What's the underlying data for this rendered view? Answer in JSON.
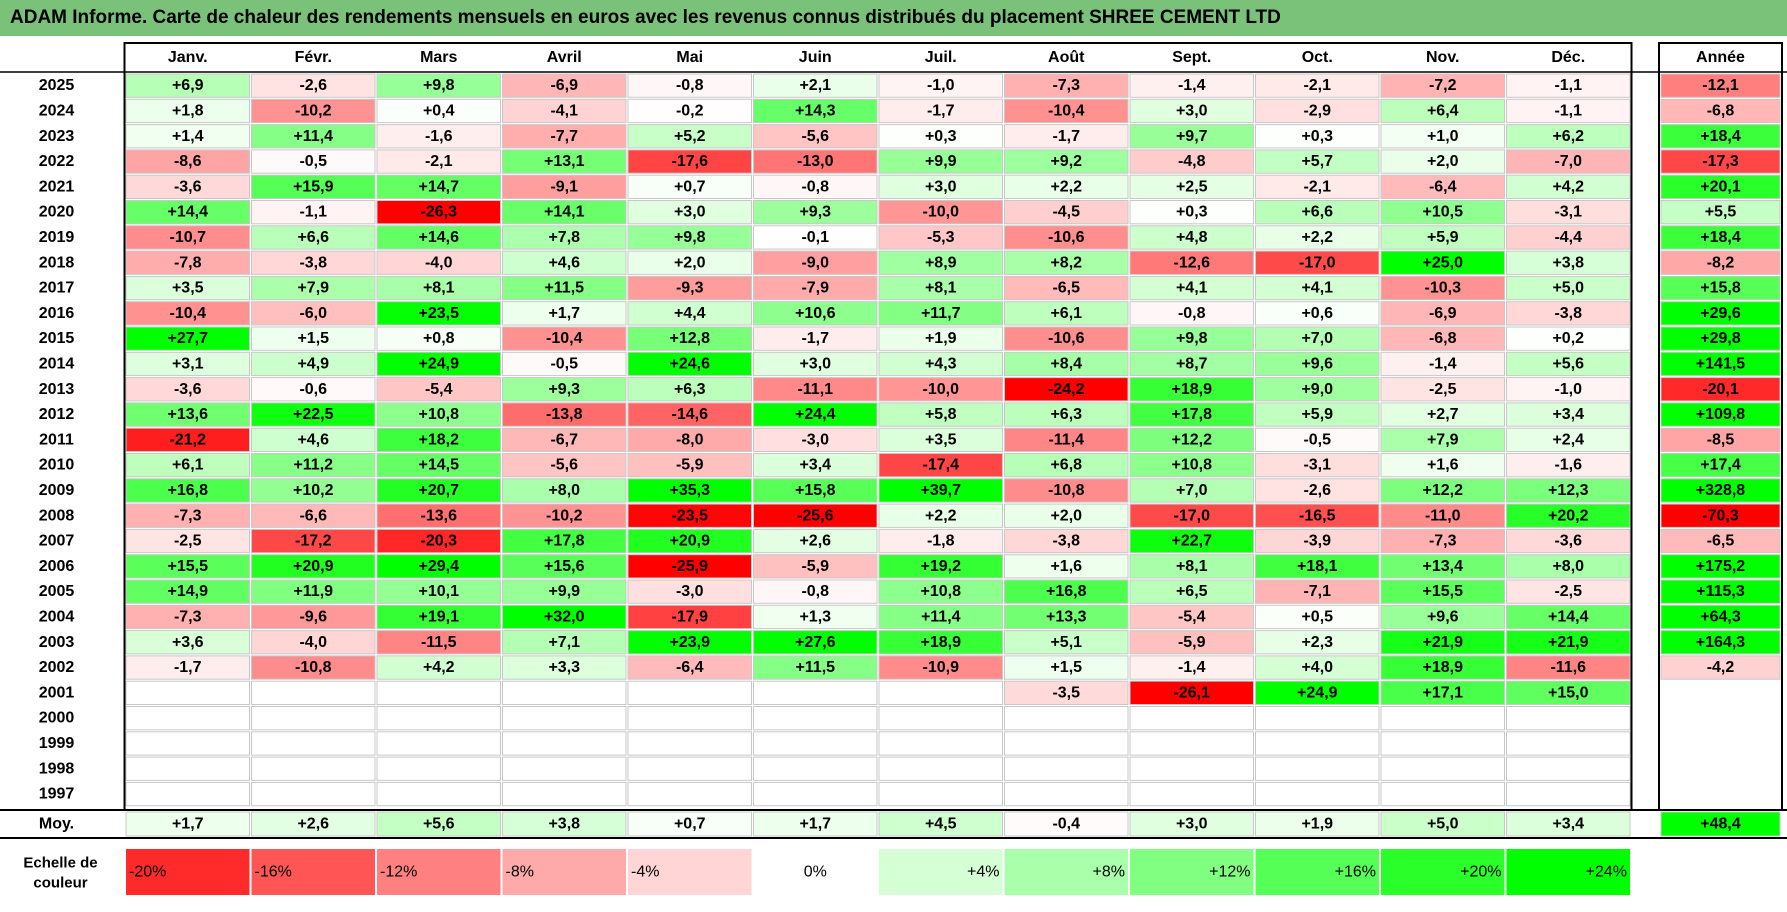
{
  "title": "ADAM Informe. Carte de chaleur des rendements mensuels en euros avec les revenus connus distribués du placement SHREE CEMENT LTD",
  "chart_data": {
    "type": "heatmap",
    "months": [
      "Janv.",
      "Févr.",
      "Mars",
      "Avril",
      "Mai",
      "Juin",
      "Juil.",
      "Août",
      "Sept.",
      "Oct.",
      "Nov.",
      "Déc."
    ],
    "year_header": "Année",
    "rows": [
      {
        "year": "2025",
        "values": [
          "+6,9",
          "-2,6",
          "+9,8",
          "-6,9",
          "-0,8",
          "+2,1",
          "-1,0",
          "-7,3",
          "-1,4",
          "-2,1",
          "-7,2",
          "-1,1"
        ],
        "annual": "-12,1"
      },
      {
        "year": "2024",
        "values": [
          "+1,8",
          "-10,2",
          "+0,4",
          "-4,1",
          "-0,2",
          "+14,3",
          "-1,7",
          "-10,4",
          "+3,0",
          "-2,9",
          "+6,4",
          "-1,1"
        ],
        "annual": "-6,8"
      },
      {
        "year": "2023",
        "values": [
          "+1,4",
          "+11,4",
          "-1,6",
          "-7,7",
          "+5,2",
          "-5,6",
          "+0,3",
          "-1,7",
          "+9,7",
          "+0,3",
          "+1,0",
          "+6,2"
        ],
        "annual": "+18,4"
      },
      {
        "year": "2022",
        "values": [
          "-8,6",
          "-0,5",
          "-2,1",
          "+13,1",
          "-17,6",
          "-13,0",
          "+9,9",
          "+9,2",
          "-4,8",
          "+5,7",
          "+2,0",
          "-7,0"
        ],
        "annual": "-17,3"
      },
      {
        "year": "2021",
        "values": [
          "-3,6",
          "+15,9",
          "+14,7",
          "-9,1",
          "+0,7",
          "-0,8",
          "+3,0",
          "+2,2",
          "+2,5",
          "-2,1",
          "-6,4",
          "+4,2"
        ],
        "annual": "+20,1"
      },
      {
        "year": "2020",
        "values": [
          "+14,4",
          "-1,1",
          "-26,3",
          "+14,1",
          "+3,0",
          "+9,3",
          "-10,0",
          "-4,5",
          "+0,3",
          "+6,6",
          "+10,5",
          "-3,1"
        ],
        "annual": "+5,5"
      },
      {
        "year": "2019",
        "values": [
          "-10,7",
          "+6,6",
          "+14,6",
          "+7,8",
          "+9,8",
          "-0,1",
          "-5,3",
          "-10,6",
          "+4,8",
          "+2,2",
          "+5,9",
          "-4,4"
        ],
        "annual": "+18,4"
      },
      {
        "year": "2018",
        "values": [
          "-7,8",
          "-3,8",
          "-4,0",
          "+4,6",
          "+2,0",
          "-9,0",
          "+8,9",
          "+8,2",
          "-12,6",
          "-17,0",
          "+25,0",
          "+3,8"
        ],
        "annual": "-8,2"
      },
      {
        "year": "2017",
        "values": [
          "+3,5",
          "+7,9",
          "+8,1",
          "+11,5",
          "-9,3",
          "-7,9",
          "+8,1",
          "-6,5",
          "+4,1",
          "+4,1",
          "-10,3",
          "+5,0"
        ],
        "annual": "+15,8"
      },
      {
        "year": "2016",
        "values": [
          "-10,4",
          "-6,0",
          "+23,5",
          "+1,7",
          "+4,4",
          "+10,6",
          "+11,7",
          "+6,1",
          "-0,8",
          "+0,6",
          "-6,9",
          "-3,8"
        ],
        "annual": "+29,6"
      },
      {
        "year": "2015",
        "values": [
          "+27,7",
          "+1,5",
          "+0,8",
          "-10,4",
          "+12,8",
          "-1,7",
          "+1,9",
          "-10,6",
          "+9,8",
          "+7,0",
          "-6,8",
          "+0,2"
        ],
        "annual": "+29,8"
      },
      {
        "year": "2014",
        "values": [
          "+3,1",
          "+4,9",
          "+24,9",
          "-0,5",
          "+24,6",
          "+3,0",
          "+4,3",
          "+8,4",
          "+8,7",
          "+9,6",
          "-1,4",
          "+5,6"
        ],
        "annual": "+141,5"
      },
      {
        "year": "2013",
        "values": [
          "-3,6",
          "-0,6",
          "-5,4",
          "+9,3",
          "+6,3",
          "-11,1",
          "-10,0",
          "-24,2",
          "+18,9",
          "+9,0",
          "-2,5",
          "-1,0"
        ],
        "annual": "-20,1"
      },
      {
        "year": "2012",
        "values": [
          "+13,6",
          "+22,5",
          "+10,8",
          "-13,8",
          "-14,6",
          "+24,4",
          "+5,8",
          "+6,3",
          "+17,8",
          "+5,9",
          "+2,7",
          "+3,4"
        ],
        "annual": "+109,8"
      },
      {
        "year": "2011",
        "values": [
          "-21,2",
          "+4,6",
          "+18,2",
          "-6,7",
          "-8,0",
          "-3,0",
          "+3,5",
          "-11,4",
          "+12,2",
          "-0,5",
          "+7,9",
          "+2,4"
        ],
        "annual": "-8,5"
      },
      {
        "year": "2010",
        "values": [
          "+6,1",
          "+11,2",
          "+14,5",
          "-5,6",
          "-5,9",
          "+3,4",
          "-17,4",
          "+6,8",
          "+10,8",
          "-3,1",
          "+1,6",
          "-1,6"
        ],
        "annual": "+17,4"
      },
      {
        "year": "2009",
        "values": [
          "+16,8",
          "+10,2",
          "+20,7",
          "+8,0",
          "+35,3",
          "+15,8",
          "+39,7",
          "-10,8",
          "+7,0",
          "-2,6",
          "+12,2",
          "+12,3"
        ],
        "annual": "+328,8"
      },
      {
        "year": "2008",
        "values": [
          "-7,3",
          "-6,6",
          "-13,6",
          "-10,2",
          "-23,5",
          "-25,6",
          "+2,2",
          "+2,0",
          "-17,0",
          "-16,5",
          "-11,0",
          "+20,2"
        ],
        "annual": "-70,3"
      },
      {
        "year": "2007",
        "values": [
          "-2,5",
          "-17,2",
          "-20,3",
          "+17,8",
          "+20,9",
          "+2,6",
          "-1,8",
          "-3,8",
          "+22,7",
          "-3,9",
          "-7,3",
          "-3,6"
        ],
        "annual": "-6,5"
      },
      {
        "year": "2006",
        "values": [
          "+15,5",
          "+20,9",
          "+29,4",
          "+15,6",
          "-25,9",
          "-5,9",
          "+19,2",
          "+1,6",
          "+8,1",
          "+18,1",
          "+13,4",
          "+8,0"
        ],
        "annual": "+175,2"
      },
      {
        "year": "2005",
        "values": [
          "+14,9",
          "+11,9",
          "+10,1",
          "+9,9",
          "-3,0",
          "-0,8",
          "+10,8",
          "+16,8",
          "+6,5",
          "-7,1",
          "+15,5",
          "-2,5"
        ],
        "annual": "+115,3"
      },
      {
        "year": "2004",
        "values": [
          "-7,3",
          "-9,6",
          "+19,1",
          "+32,0",
          "-17,9",
          "+1,3",
          "+11,4",
          "+13,3",
          "-5,4",
          "+0,5",
          "+9,6",
          "+14,4"
        ],
        "annual": "+64,3"
      },
      {
        "year": "2003",
        "values": [
          "+3,6",
          "-4,0",
          "-11,5",
          "+7,1",
          "+23,9",
          "+27,6",
          "+18,9",
          "+5,1",
          "-5,9",
          "+2,3",
          "+21,9",
          "+21,9"
        ],
        "annual": "+164,3"
      },
      {
        "year": "2002",
        "values": [
          "-1,7",
          "-10,8",
          "+4,2",
          "+3,3",
          "-6,4",
          "+11,5",
          "-10,9",
          "+1,5",
          "-1,4",
          "+4,0",
          "+18,9",
          "-11,6"
        ],
        "annual": "-4,2"
      },
      {
        "year": "2001",
        "values": [
          "",
          "",
          "",
          "",
          "",
          "",
          "",
          "-3,5",
          "-26,1",
          "+24,9",
          "+17,1",
          "+15,0"
        ],
        "annual": ""
      },
      {
        "year": "2000",
        "values": [
          "",
          "",
          "",
          "",
          "",
          "",
          "",
          "",
          "",
          "",
          "",
          ""
        ],
        "annual": ""
      },
      {
        "year": "1999",
        "values": [
          "",
          "",
          "",
          "",
          "",
          "",
          "",
          "",
          "",
          "",
          "",
          ""
        ],
        "annual": ""
      },
      {
        "year": "1998",
        "values": [
          "",
          "",
          "",
          "",
          "",
          "",
          "",
          "",
          "",
          "",
          "",
          ""
        ],
        "annual": ""
      },
      {
        "year": "1997",
        "values": [
          "",
          "",
          "",
          "",
          "",
          "",
          "",
          "",
          "",
          "",
          "",
          ""
        ],
        "annual": ""
      }
    ],
    "average": {
      "label": "Moy.",
      "values": [
        "+1,7",
        "+2,6",
        "+5,6",
        "+3,8",
        "+0,7",
        "+1,7",
        "+4,5",
        "-0,4",
        "+3,0",
        "+1,9",
        "+5,0",
        "+3,4"
      ],
      "annual": "+48,4"
    },
    "scale": {
      "label_line1": "Echelle de",
      "label_line2": "couleur",
      "items": [
        {
          "label": "-20%",
          "value": -20
        },
        {
          "label": "-16%",
          "value": -16
        },
        {
          "label": "-12%",
          "value": -12
        },
        {
          "label": "-8%",
          "value": -8
        },
        {
          "label": "-4%",
          "value": -4
        },
        {
          "label": "0%",
          "value": 0
        },
        {
          "label": "+4%",
          "value": 4
        },
        {
          "label": "+8%",
          "value": 8
        },
        {
          "label": "+12%",
          "value": 12
        },
        {
          "label": "+16%",
          "value": 16
        },
        {
          "label": "+20%",
          "value": 20
        },
        {
          "label": "+24%",
          "value": 24
        }
      ]
    },
    "colors": {
      "negative_max": "#ff0000",
      "neutral": "#ffffff",
      "positive_max": "#00ff00",
      "title_bar": "#7ac27a"
    }
  }
}
